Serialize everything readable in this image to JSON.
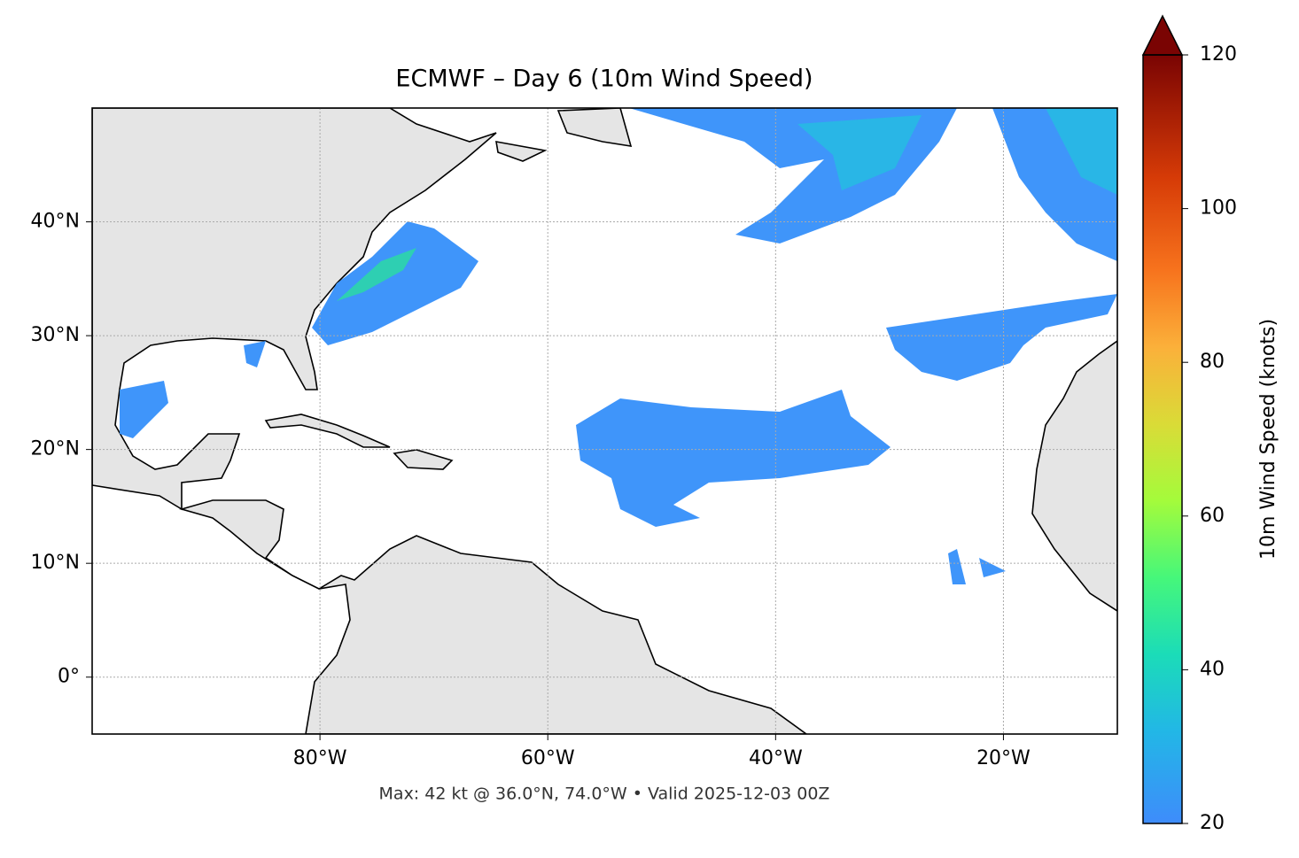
{
  "title": "ECMWF – Day 6 (10m Wind Speed)",
  "footer": "Max: 42 kt @ 36.0°N, 74.0°W • Valid 2025-12-03 00Z",
  "map": {
    "xlim": [
      -100,
      -10
    ],
    "ylim": [
      -5,
      50
    ],
    "xticks": [
      {
        "value": -80,
        "label": "80°W"
      },
      {
        "value": -60,
        "label": "60°W"
      },
      {
        "value": -40,
        "label": "40°W"
      },
      {
        "value": -20,
        "label": "20°W"
      }
    ],
    "yticks": [
      {
        "value": 0,
        "label": "0°"
      },
      {
        "value": 10,
        "label": "10°N"
      },
      {
        "value": 20,
        "label": "20°N"
      },
      {
        "value": 30,
        "label": "30°N"
      },
      {
        "value": 40,
        "label": "40°N"
      }
    ]
  },
  "colorbar": {
    "label": "10m Wind Speed (knots)",
    "lim": [
      20,
      120
    ],
    "ticks": [
      20,
      40,
      60,
      80,
      100,
      120
    ]
  }
}
